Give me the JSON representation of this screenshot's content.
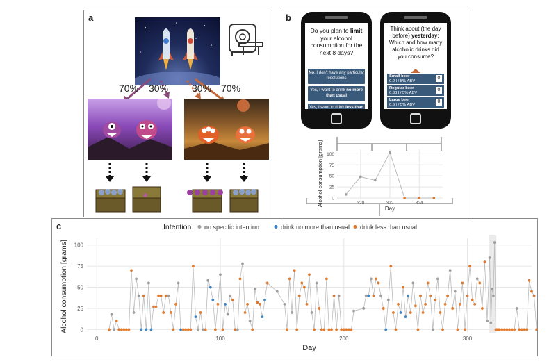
{
  "panel_a": {
    "label": "a",
    "percentages": [
      "70%",
      "30%",
      "30%",
      "70%"
    ]
  },
  "panel_b": {
    "label": "b",
    "phone1": {
      "question_html": "Do you plan to <b>limit</b> your alcohol consumption for the next 8 days?",
      "options_html": [
        "<b>No</b>, I don't have any particular resolutions",
        "Yes, I want to drink <b>no more than usual</b>",
        "Yes, I want to drink <b>less than usual</b>"
      ]
    },
    "phone2": {
      "question_html": "Think about (the day before) <b>yesterday</b>: Which and how many alcoholic drinks did you consume?",
      "beers": [
        {
          "name": "Small beer",
          "detail": "0.2 l / 5% ABV",
          "count": "0"
        },
        {
          "name": "Regular beer",
          "detail": "0.33 l / 5% ABV",
          "count": "0"
        },
        {
          "name": "Large beer",
          "detail": "0.5 l / 5% ABV",
          "count": "0"
        }
      ]
    }
  },
  "panel_c": {
    "label": "c"
  },
  "colors": {
    "no_specific": "#9e9e9e",
    "no_more": "#3e84c4",
    "less": "#e07a2e",
    "line": "#bbbbbb",
    "grid": "#e6e6e6",
    "phone_button": "#3a5a7c",
    "phone_arrow": "#c86a3a"
  },
  "chart_data": [
    {
      "type": "line",
      "ylabel": "Alcohol consumption [grams]",
      "xlabel": "Day",
      "xticks": [
        320,
        322,
        324
      ],
      "yticks": [
        0,
        25,
        50,
        75,
        100
      ],
      "ylim": [
        0,
        110
      ],
      "xlim": [
        318.4,
        325.6
      ],
      "grid": true,
      "x": [
        319,
        320,
        321,
        322,
        323,
        324,
        325
      ],
      "values": [
        8,
        48,
        40,
        103,
        0,
        0,
        0
      ],
      "intention": [
        "none",
        "none",
        "none",
        "none",
        "less",
        "less",
        "less"
      ]
    },
    {
      "type": "scatter",
      "legend_title": "Intention",
      "legend": [
        {
          "label": "no specific intention",
          "color": "#9e9e9e"
        },
        {
          "label": "drink no more than usual",
          "color": "#3e84c4"
        },
        {
          "label": "drink less than usual",
          "color": "#e07a2e"
        }
      ],
      "legend_position": "top",
      "xlabel": "Day",
      "ylabel": "Alcohol consumption [grams]",
      "xticks": [
        0,
        100,
        200,
        300
      ],
      "yticks": [
        0,
        25,
        50,
        75,
        100
      ],
      "xlim": [
        -8,
        352
      ],
      "ylim": [
        -3,
        108
      ],
      "grid": true,
      "highlight_day": 320,
      "points": [
        [
          10,
          0,
          "less"
        ],
        [
          12,
          18,
          "none"
        ],
        [
          14,
          0,
          "none"
        ],
        [
          16,
          10,
          "less"
        ],
        [
          18,
          0,
          "less"
        ],
        [
          20,
          0,
          "less"
        ],
        [
          22,
          0,
          "less"
        ],
        [
          24,
          0,
          "less"
        ],
        [
          26,
          0,
          "less"
        ],
        [
          28,
          70,
          "less"
        ],
        [
          30,
          20,
          "none"
        ],
        [
          32,
          60,
          "none"
        ],
        [
          34,
          40,
          "none"
        ],
        [
          36,
          0,
          "no_more"
        ],
        [
          38,
          40,
          "less"
        ],
        [
          40,
          0,
          "no_more"
        ],
        [
          42,
          55,
          "none"
        ],
        [
          44,
          0,
          "no_more"
        ],
        [
          46,
          27,
          "less"
        ],
        [
          48,
          27,
          "less"
        ],
        [
          50,
          40,
          "less"
        ],
        [
          52,
          40,
          "less"
        ],
        [
          54,
          20,
          "less"
        ],
        [
          56,
          40,
          "less"
        ],
        [
          58,
          40,
          "none"
        ],
        [
          60,
          20,
          "less"
        ],
        [
          62,
          0,
          "less"
        ],
        [
          64,
          30,
          "less"
        ],
        [
          66,
          55,
          "none"
        ],
        [
          68,
          0,
          "no_more"
        ],
        [
          70,
          0,
          "less"
        ],
        [
          72,
          0,
          "less"
        ],
        [
          74,
          0,
          "less"
        ],
        [
          76,
          0,
          "less"
        ],
        [
          78,
          75,
          "less"
        ],
        [
          80,
          15,
          "no_more"
        ],
        [
          82,
          0,
          "none"
        ],
        [
          84,
          20,
          "less"
        ],
        [
          86,
          0,
          "none"
        ],
        [
          88,
          0,
          "less"
        ],
        [
          90,
          58,
          "none"
        ],
        [
          92,
          50,
          "no_more"
        ],
        [
          94,
          35,
          "no_more"
        ],
        [
          96,
          0,
          "less"
        ],
        [
          98,
          30,
          "less"
        ],
        [
          100,
          65,
          "none"
        ],
        [
          102,
          0,
          "less"
        ],
        [
          104,
          30,
          "no_more"
        ],
        [
          106,
          18,
          "none"
        ],
        [
          108,
          40,
          "none"
        ],
        [
          110,
          35,
          "less"
        ],
        [
          112,
          0,
          "less"
        ],
        [
          114,
          0,
          "none"
        ],
        [
          116,
          60,
          "less"
        ],
        [
          118,
          78,
          "none"
        ],
        [
          120,
          20,
          "less"
        ],
        [
          122,
          30,
          "less"
        ],
        [
          124,
          10,
          "none"
        ],
        [
          126,
          0,
          "less"
        ],
        [
          128,
          48,
          "none"
        ],
        [
          130,
          32,
          "less"
        ],
        [
          132,
          30,
          "less"
        ],
        [
          134,
          15,
          "no_more"
        ],
        [
          136,
          35,
          "no_more"
        ],
        [
          138,
          55,
          "less"
        ],
        [
          146,
          45,
          "none"
        ],
        [
          152,
          30,
          "none"
        ],
        [
          154,
          0,
          "less"
        ],
        [
          156,
          60,
          "less"
        ],
        [
          158,
          20,
          "none"
        ],
        [
          160,
          70,
          "less"
        ],
        [
          162,
          0,
          "less"
        ],
        [
          164,
          40,
          "less"
        ],
        [
          166,
          55,
          "less"
        ],
        [
          168,
          50,
          "less"
        ],
        [
          170,
          30,
          "less"
        ],
        [
          172,
          65,
          "less"
        ],
        [
          174,
          20,
          "none"
        ],
        [
          176,
          0,
          "less"
        ],
        [
          178,
          55,
          "none"
        ],
        [
          180,
          25,
          "less"
        ],
        [
          182,
          0,
          "less"
        ],
        [
          184,
          0,
          "less"
        ],
        [
          186,
          60,
          "less"
        ],
        [
          188,
          0,
          "less"
        ],
        [
          190,
          0,
          "less"
        ],
        [
          192,
          40,
          "less"
        ],
        [
          194,
          0,
          "less"
        ],
        [
          196,
          40,
          "none"
        ],
        [
          198,
          0,
          "less"
        ],
        [
          200,
          0,
          "less"
        ],
        [
          202,
          0,
          "less"
        ],
        [
          204,
          0,
          "less"
        ],
        [
          206,
          0,
          "less"
        ],
        [
          208,
          22,
          "none"
        ],
        [
          216,
          25,
          "none"
        ],
        [
          218,
          40,
          "none"
        ],
        [
          220,
          40,
          "no_more"
        ],
        [
          222,
          60,
          "none"
        ],
        [
          224,
          40,
          "less"
        ],
        [
          226,
          60,
          "less"
        ],
        [
          228,
          55,
          "less"
        ],
        [
          230,
          40,
          "none"
        ],
        [
          232,
          25,
          "less"
        ],
        [
          234,
          0,
          "no_more"
        ],
        [
          236,
          35,
          "none"
        ],
        [
          238,
          75,
          "less"
        ],
        [
          240,
          20,
          "less"
        ],
        [
          242,
          0,
          "less"
        ],
        [
          244,
          30,
          "less"
        ],
        [
          246,
          20,
          "no_more"
        ],
        [
          248,
          50,
          "less"
        ],
        [
          250,
          15,
          "no_more"
        ],
        [
          252,
          40,
          "no_more"
        ],
        [
          254,
          20,
          "less"
        ],
        [
          256,
          55,
          "none"
        ],
        [
          258,
          28,
          "less"
        ],
        [
          260,
          0,
          "less"
        ],
        [
          262,
          40,
          "less"
        ],
        [
          264,
          20,
          "less"
        ],
        [
          266,
          30,
          "less"
        ],
        [
          268,
          55,
          "less"
        ],
        [
          270,
          40,
          "less"
        ],
        [
          272,
          0,
          "none"
        ],
        [
          274,
          35,
          "less"
        ],
        [
          276,
          60,
          "none"
        ],
        [
          278,
          20,
          "less"
        ],
        [
          280,
          0,
          "less"
        ],
        [
          282,
          30,
          "less"
        ],
        [
          284,
          40,
          "less"
        ],
        [
          286,
          70,
          "none"
        ],
        [
          288,
          25,
          "less"
        ],
        [
          290,
          45,
          "none"
        ],
        [
          292,
          0,
          "less"
        ],
        [
          294,
          30,
          "less"
        ],
        [
          296,
          55,
          "less"
        ],
        [
          298,
          0,
          "less"
        ],
        [
          300,
          40,
          "less"
        ],
        [
          302,
          75,
          "less"
        ],
        [
          304,
          35,
          "less"
        ],
        [
          306,
          30,
          "less"
        ],
        [
          308,
          60,
          "none"
        ],
        [
          310,
          55,
          "less"
        ],
        [
          312,
          25,
          "less"
        ],
        [
          314,
          80,
          "less"
        ],
        [
          316,
          10,
          "none"
        ],
        [
          318,
          85,
          "none"
        ],
        [
          319,
          8,
          "none"
        ],
        [
          320,
          48,
          "none"
        ],
        [
          321,
          40,
          "none"
        ],
        [
          322,
          103,
          "none"
        ],
        [
          323,
          0,
          "less"
        ],
        [
          324,
          0,
          "less"
        ],
        [
          325,
          0,
          "less"
        ],
        [
          326,
          0,
          "less"
        ],
        [
          328,
          0,
          "less"
        ],
        [
          330,
          0,
          "less"
        ],
        [
          332,
          0,
          "less"
        ],
        [
          334,
          0,
          "less"
        ],
        [
          336,
          0,
          "less"
        ],
        [
          338,
          0,
          "less"
        ],
        [
          340,
          25,
          "none"
        ],
        [
          342,
          0,
          "less"
        ],
        [
          344,
          0,
          "less"
        ],
        [
          346,
          0,
          "less"
        ],
        [
          348,
          0,
          "less"
        ],
        [
          350,
          58,
          "less"
        ],
        [
          352,
          45,
          "less"
        ],
        [
          354,
          40,
          "less"
        ],
        [
          356,
          0,
          "less"
        ],
        [
          358,
          0,
          "less"
        ]
      ]
    }
  ]
}
